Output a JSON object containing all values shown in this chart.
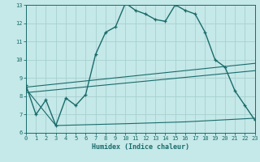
{
  "xlabel": "Humidex (Indice chaleur)",
  "xlim": [
    0,
    23
  ],
  "ylim": [
    6,
    13
  ],
  "xticks": [
    0,
    1,
    2,
    3,
    4,
    5,
    6,
    7,
    8,
    9,
    10,
    11,
    12,
    13,
    14,
    15,
    16,
    17,
    18,
    19,
    20,
    21,
    22,
    23
  ],
  "yticks": [
    6,
    7,
    8,
    9,
    10,
    11,
    12,
    13
  ],
  "background_color": "#c5e8e8",
  "line_color": "#1a6b6b",
  "grid_color": "#a8d0d0",
  "curve1_x": [
    0,
    1,
    2,
    3,
    4,
    5,
    6,
    7,
    8,
    9,
    10,
    11,
    12,
    13,
    14,
    15,
    16,
    17,
    18,
    19,
    20,
    21,
    22,
    23
  ],
  "curve1_y": [
    8.6,
    7.0,
    7.8,
    6.4,
    7.9,
    7.5,
    8.1,
    10.3,
    11.5,
    11.8,
    13.1,
    12.7,
    12.5,
    12.2,
    12.1,
    13.0,
    12.7,
    12.5,
    11.5,
    10.0,
    9.6,
    8.3,
    7.5,
    6.7
  ],
  "curve2_x": [
    0,
    3,
    10,
    16,
    23
  ],
  "curve2_y": [
    8.4,
    6.4,
    6.5,
    6.6,
    6.8
  ],
  "curve3_x": [
    0,
    23
  ],
  "curve3_y": [
    8.2,
    9.4
  ],
  "curve4_x": [
    0,
    23
  ],
  "curve4_y": [
    8.5,
    9.8
  ]
}
